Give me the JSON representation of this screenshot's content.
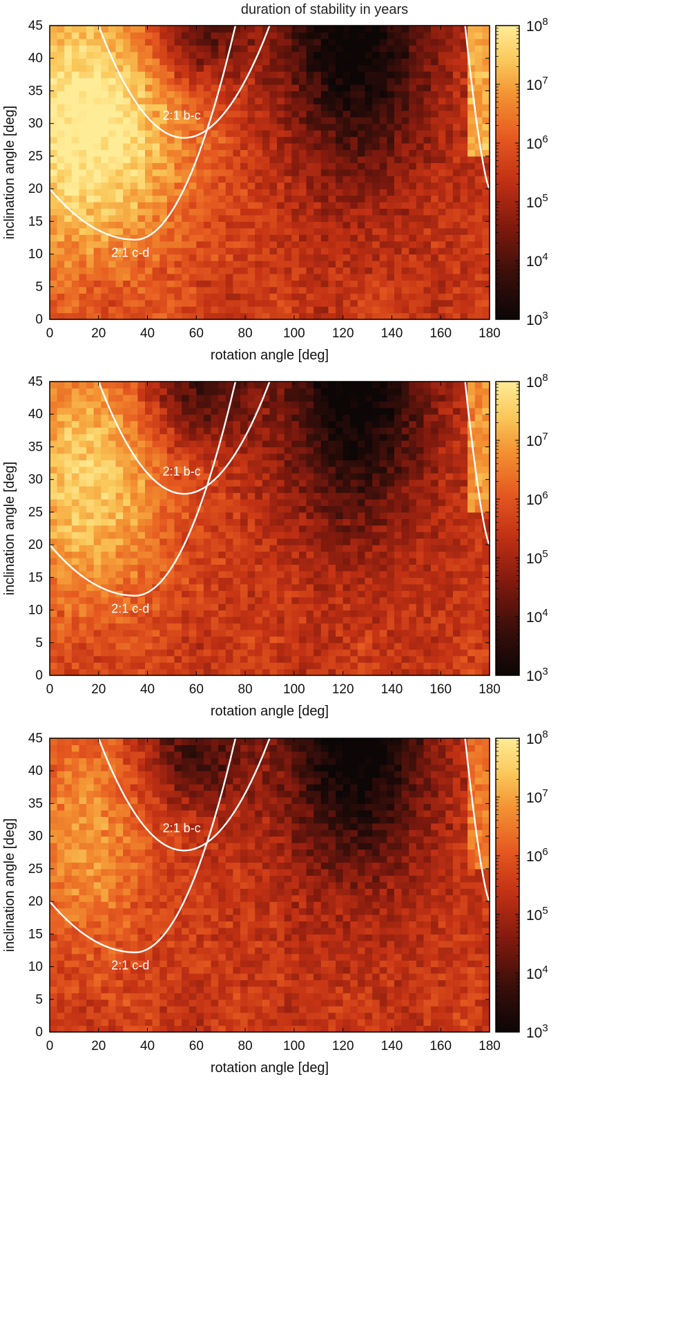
{
  "figure_title": "duration of stability in years",
  "chart_data": [
    {
      "type": "heatmap",
      "panel": "top",
      "xlabel": "rotation angle [deg]",
      "ylabel": "inclination angle [deg]",
      "xlim": [
        0,
        180
      ],
      "ylim": [
        0,
        45
      ],
      "x_ticks": [
        "0",
        "20",
        "40",
        "60",
        "80",
        "100",
        "120",
        "140",
        "160",
        "180"
      ],
      "y_ticks": [
        "0",
        "5",
        "10",
        "15",
        "20",
        "25",
        "30",
        "35",
        "40",
        "45"
      ],
      "colorbar": {
        "scale": "log",
        "min": 1000,
        "max": 100000000,
        "ticks_exponent": [
          "3",
          "4",
          "5",
          "6",
          "7",
          "8"
        ],
        "tick_base": "10"
      },
      "annotations": [
        "2:1 b-c",
        "2:1 c-d"
      ],
      "stable_lobe_strength": 1.0
    },
    {
      "type": "heatmap",
      "panel": "middle",
      "xlabel": "rotation angle [deg]",
      "ylabel": "inclination angle [deg]",
      "xlim": [
        0,
        180
      ],
      "ylim": [
        0,
        45
      ],
      "x_ticks": [
        "0",
        "20",
        "40",
        "60",
        "80",
        "100",
        "120",
        "140",
        "160",
        "180"
      ],
      "y_ticks": [
        "0",
        "5",
        "10",
        "15",
        "20",
        "25",
        "30",
        "35",
        "40",
        "45"
      ],
      "colorbar": {
        "scale": "log",
        "min": 1000,
        "max": 100000000,
        "ticks_exponent": [
          "3",
          "4",
          "5",
          "6",
          "7",
          "8"
        ],
        "tick_base": "10"
      },
      "annotations": [
        "2:1 b-c",
        "2:1 c-d"
      ],
      "stable_lobe_strength": 0.75
    },
    {
      "type": "heatmap",
      "panel": "bottom",
      "xlabel": "rotation angle [deg]",
      "ylabel": "inclination angle [deg]",
      "xlim": [
        0,
        180
      ],
      "ylim": [
        0,
        45
      ],
      "x_ticks": [
        "0",
        "20",
        "40",
        "60",
        "80",
        "100",
        "120",
        "140",
        "160",
        "180"
      ],
      "y_ticks": [
        "0",
        "5",
        "10",
        "15",
        "20",
        "25",
        "30",
        "35",
        "40",
        "45"
      ],
      "colorbar": {
        "scale": "log",
        "min": 1000,
        "max": 100000000,
        "ticks_exponent": [
          "3",
          "4",
          "5",
          "6",
          "7",
          "8"
        ],
        "tick_base": "10"
      },
      "annotations": [
        "2:1 b-c",
        "2:1 c-d"
      ],
      "stable_lobe_strength": 0.5
    }
  ]
}
